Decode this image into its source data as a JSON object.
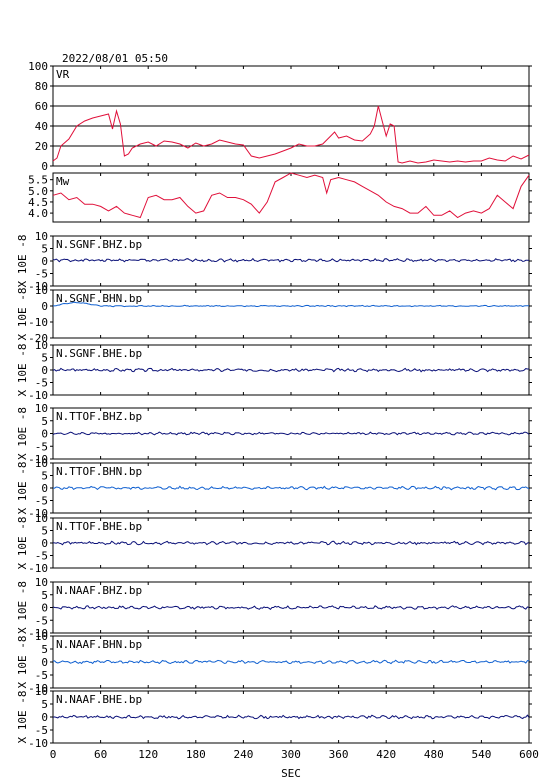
{
  "header": {
    "timestamp": "2022/08/01 05:50"
  },
  "x_axis": {
    "label": "SEC",
    "ticks": [
      "0",
      "60",
      "120",
      "180",
      "240",
      "300",
      "360",
      "420",
      "480",
      "540",
      "600"
    ]
  },
  "ylabel_waveform": "X 10E -8",
  "colors": {
    "vr": "#e0103a",
    "mw": "#e0103a",
    "dark": "#0a1078",
    "light": "#1060d0",
    "frame": "#000000",
    "grid": "#000000"
  },
  "chart_data": [
    {
      "type": "line",
      "name": "VR",
      "xlim": [
        0,
        600
      ],
      "ylim": [
        0,
        100
      ],
      "yticks": [
        "0",
        "20",
        "40",
        "60",
        "80",
        "100"
      ],
      "grid": true,
      "x": [
        0,
        5,
        10,
        20,
        30,
        40,
        50,
        60,
        70,
        75,
        80,
        85,
        90,
        95,
        100,
        110,
        120,
        130,
        140,
        150,
        160,
        170,
        180,
        190,
        200,
        210,
        220,
        230,
        240,
        250,
        260,
        270,
        280,
        290,
        300,
        310,
        320,
        330,
        340,
        350,
        355,
        360,
        370,
        380,
        390,
        400,
        405,
        410,
        415,
        420,
        425,
        430,
        435,
        440,
        450,
        460,
        470,
        480,
        490,
        500,
        510,
        520,
        530,
        540,
        550,
        560,
        570,
        580,
        590,
        600
      ],
      "y": [
        5,
        8,
        20,
        27,
        40,
        45,
        48,
        50,
        52,
        37,
        55,
        42,
        10,
        12,
        18,
        22,
        24,
        20,
        25,
        24,
        22,
        18,
        23,
        20,
        22,
        26,
        24,
        22,
        21,
        10,
        8,
        10,
        12,
        15,
        18,
        22,
        20,
        20,
        22,
        30,
        34,
        28,
        30,
        26,
        25,
        32,
        40,
        60,
        45,
        30,
        42,
        40,
        4,
        3,
        5,
        3,
        4,
        6,
        5,
        4,
        5,
        4,
        5,
        5,
        8,
        6,
        5,
        10,
        7,
        11
      ]
    },
    {
      "type": "line",
      "name": "Mw",
      "xlim": [
        0,
        600
      ],
      "ylim": [
        3.6,
        5.8
      ],
      "yticks": [
        "4.0",
        "4.5",
        "5.0",
        "5.5"
      ],
      "grid": false,
      "x": [
        0,
        10,
        20,
        30,
        40,
        50,
        60,
        70,
        80,
        90,
        100,
        110,
        120,
        130,
        140,
        150,
        160,
        170,
        180,
        190,
        200,
        210,
        220,
        230,
        240,
        250,
        260,
        270,
        280,
        290,
        300,
        310,
        320,
        330,
        340,
        345,
        350,
        360,
        370,
        380,
        390,
        400,
        410,
        420,
        430,
        440,
        450,
        460,
        470,
        480,
        490,
        500,
        510,
        520,
        530,
        540,
        550,
        560,
        570,
        580,
        590,
        600
      ],
      "y": [
        4.8,
        4.9,
        4.6,
        4.7,
        4.4,
        4.4,
        4.3,
        4.1,
        4.3,
        4.0,
        3.9,
        3.8,
        4.7,
        4.8,
        4.6,
        4.6,
        4.7,
        4.3,
        4.0,
        4.1,
        4.8,
        4.9,
        4.7,
        4.7,
        4.6,
        4.4,
        4.0,
        4.5,
        5.4,
        5.6,
        5.8,
        5.7,
        5.6,
        5.7,
        5.6,
        4.9,
        5.5,
        5.6,
        5.5,
        5.4,
        5.2,
        5.0,
        4.8,
        4.5,
        4.3,
        4.2,
        4.0,
        4.0,
        4.3,
        3.9,
        3.9,
        4.1,
        3.8,
        4.0,
        4.1,
        4.0,
        4.2,
        4.8,
        4.5,
        4.2,
        5.2,
        5.7
      ]
    },
    {
      "type": "line",
      "name": "N.SGNF.BHZ.bp",
      "color": "dark",
      "ylim": [
        -10,
        10
      ],
      "yticks": [
        "-10",
        "-5",
        "0",
        "5",
        "10"
      ],
      "amplitude": 0.5,
      "offset": 0.3,
      "seed": 1
    },
    {
      "type": "line",
      "name": "N.SGNF.BHN.bp",
      "color": "light",
      "ylim": [
        -20,
        10
      ],
      "yticks": [
        "-20",
        "-10",
        "0",
        "10"
      ],
      "amplitude": 0.3,
      "offset": 0.0,
      "seed": 2,
      "start_bump": 2.0
    },
    {
      "type": "line",
      "name": "N.SGNF.BHE.bp",
      "color": "dark",
      "ylim": [
        -10,
        10
      ],
      "yticks": [
        "-10",
        "-5",
        "0",
        "5",
        "10"
      ],
      "amplitude": 0.5,
      "offset": 0.0,
      "seed": 3
    },
    {
      "type": "line",
      "name": "N.TTOF.BHZ.bp",
      "color": "dark",
      "ylim": [
        -10,
        10
      ],
      "yticks": [
        "-10",
        "-5",
        "0",
        "5",
        "10"
      ],
      "amplitude": 0.4,
      "offset": 0.0,
      "seed": 4
    },
    {
      "type": "line",
      "name": "N.TTOF.BHN.bp",
      "color": "light",
      "ylim": [
        -10,
        10
      ],
      "yticks": [
        "-10",
        "-5",
        "0",
        "5",
        "10"
      ],
      "amplitude": 0.5,
      "offset": 0.0,
      "seed": 5
    },
    {
      "type": "line",
      "name": "N.TTOF.BHE.bp",
      "color": "dark",
      "ylim": [
        -10,
        10
      ],
      "yticks": [
        "-10",
        "-5",
        "0",
        "5",
        "10"
      ],
      "amplitude": 0.5,
      "offset": 0.0,
      "seed": 6
    },
    {
      "type": "line",
      "name": "N.NAAF.BHZ.bp",
      "color": "dark",
      "ylim": [
        -10,
        10
      ],
      "yticks": [
        "-10",
        "-5",
        "0",
        "5",
        "10"
      ],
      "amplitude": 0.5,
      "offset": 0.0,
      "seed": 7
    },
    {
      "type": "line",
      "name": "N.NAAF.BHN.bp",
      "color": "light",
      "ylim": [
        -10,
        10
      ],
      "yticks": [
        "-10",
        "-5",
        "0",
        "5",
        "10"
      ],
      "amplitude": 0.5,
      "offset": 0.0,
      "seed": 8
    },
    {
      "type": "line",
      "name": "N.NAAF.BHE.bp",
      "color": "dark",
      "ylim": [
        -10,
        10
      ],
      "yticks": [
        "-10",
        "-5",
        "0",
        "5",
        "10"
      ],
      "amplitude": 0.5,
      "offset": 0.0,
      "seed": 9
    }
  ]
}
